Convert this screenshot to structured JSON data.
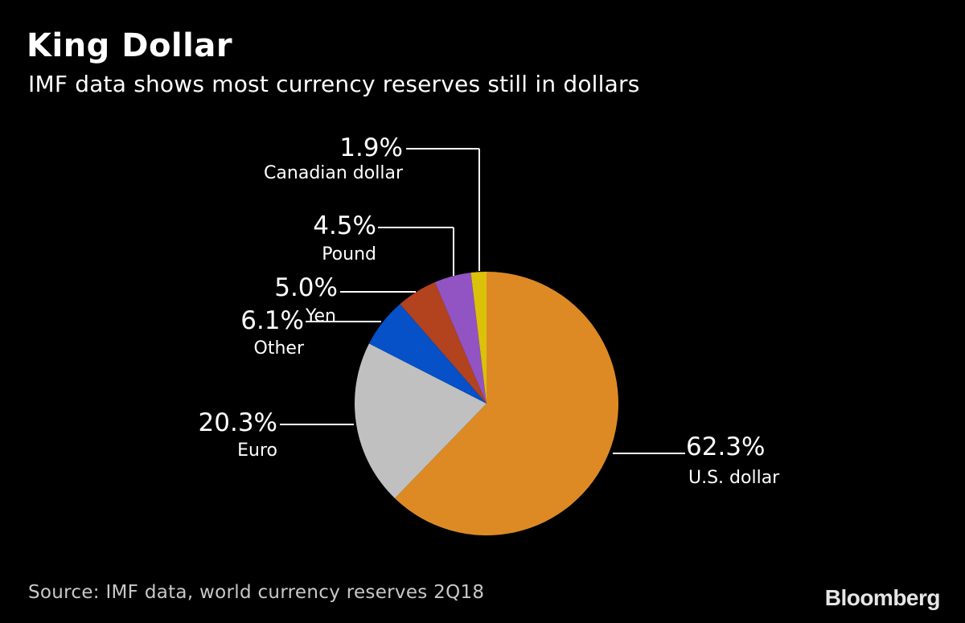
{
  "title": "King Dollar",
  "subtitle": "IMF data shows most currency reserves still in dollars",
  "source": "Source: IMF data, world currency reserves 2Q18",
  "brand": "Bloomberg",
  "chart_data": {
    "type": "pie",
    "title": "King Dollar",
    "subtitle": "IMF data shows most currency reserves still in dollars",
    "slices": [
      {
        "name": "U.S. dollar",
        "value": 62.3,
        "label": "62.3%",
        "color": "#dd8a25"
      },
      {
        "name": "Euro",
        "value": 20.3,
        "label": "20.3%",
        "color": "#c0c0c0"
      },
      {
        "name": "Other",
        "value": 6.1,
        "label": "6.1%",
        "color": "#0650c8"
      },
      {
        "name": "Yen",
        "value": 5.0,
        "label": "5.0%",
        "color": "#b3421f"
      },
      {
        "name": "Pound",
        "value": 4.5,
        "label": "4.5%",
        "color": "#9254c2"
      },
      {
        "name": "Canadian dollar",
        "value": 1.9,
        "label": "1.9%",
        "color": "#dcc10a"
      }
    ]
  }
}
